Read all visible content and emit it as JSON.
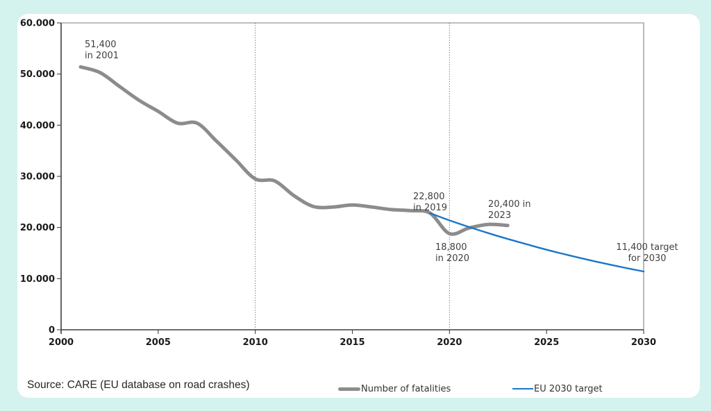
{
  "page": {
    "background_color": "#d4f2ee",
    "card_background": "#ffffff"
  },
  "source_note": "Source: CARE (EU database on road crashes)",
  "legend": {
    "items": [
      {
        "label": "Number of fatalities",
        "color": "#8c8c8c"
      },
      {
        "label": "EU 2030 target",
        "color": "#1b76c9"
      }
    ]
  },
  "chart_data": {
    "type": "line",
    "title": "",
    "xlabel": "",
    "ylabel": "",
    "xlim": [
      2000,
      2030
    ],
    "ylim": [
      0,
      60000
    ],
    "x_ticks": [
      2000,
      2005,
      2010,
      2015,
      2020,
      2025,
      2030
    ],
    "x_tick_labels": [
      "2000",
      "2005",
      "2010",
      "2015",
      "2020",
      "2025",
      "2030"
    ],
    "y_ticks": [
      0,
      10000,
      20000,
      30000,
      40000,
      50000,
      60000
    ],
    "y_tick_labels": [
      "0",
      "10.000",
      "20.000",
      "30.000",
      "40.000",
      "50.000",
      "60.000"
    ],
    "dashed_vlines": [
      2010,
      2020
    ],
    "grid": "off",
    "legend_position": "bottom",
    "colors": {
      "axis": "#3f3f3f",
      "plot_border": "#a8a8a8",
      "dashed_line": "#595959",
      "fatalities": "#8c8c8c",
      "target": "#1b76c9"
    },
    "series": [
      {
        "name": "Number of fatalities",
        "color": "#8c8c8c",
        "stroke_width": 5,
        "x": [
          2001,
          2002,
          2003,
          2004,
          2005,
          2006,
          2007,
          2008,
          2009,
          2010,
          2011,
          2012,
          2013,
          2014,
          2015,
          2016,
          2017,
          2018,
          2019,
          2020,
          2021,
          2022,
          2023
        ],
        "values": [
          51400,
          50300,
          47600,
          44900,
          42700,
          40400,
          40400,
          36900,
          33200,
          29500,
          29100,
          26200,
          24100,
          24000,
          24400,
          24000,
          23500,
          23300,
          22800,
          18800,
          19900,
          20600,
          20400
        ]
      },
      {
        "name": "EU 2030 target",
        "color": "#1b76c9",
        "stroke_width": 2.4,
        "x": [
          2019,
          2020,
          2021,
          2022,
          2023,
          2024,
          2025,
          2026,
          2027,
          2028,
          2029,
          2030
        ],
        "values": [
          22800,
          21400,
          20100,
          18900,
          17750,
          16700,
          15650,
          14700,
          13800,
          12950,
          12150,
          11400
        ]
      }
    ],
    "annotations": [
      {
        "text": "51,400\nin 2001",
        "x": 2001,
        "y": 51400
      },
      {
        "text": "22,800\nin 2019",
        "x": 2019,
        "y": 22800
      },
      {
        "text": "18,800\nin 2020",
        "x": 2020,
        "y": 18800
      },
      {
        "text": "20,400 in\n2023",
        "x": 2023,
        "y": 20400
      },
      {
        "text": "11,400 target\nfor 2030",
        "x": 2030,
        "y": 11400
      }
    ]
  }
}
